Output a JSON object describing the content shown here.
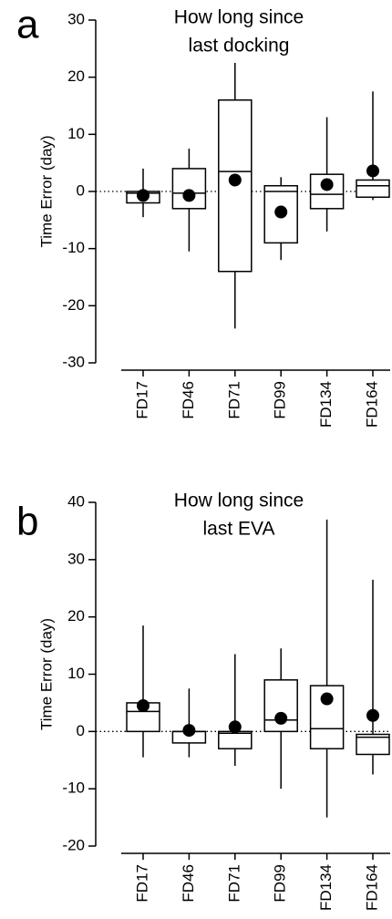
{
  "chart_data": [
    {
      "type": "box",
      "panel_label": "a",
      "title": [
        "How long since",
        "last docking"
      ],
      "y_label": "Time Error (day)",
      "categories": [
        "FD17",
        "FD46",
        "FD71",
        "FD99",
        "FD134",
        "FD164"
      ],
      "whisker_low": [
        -4.5,
        -10.5,
        -24,
        -12,
        -7,
        -1.5
      ],
      "q1": [
        -2,
        -3,
        -14,
        -9,
        -3,
        -1
      ],
      "median": [
        -0.3,
        -0.3,
        3.5,
        0,
        -0.5,
        1
      ],
      "q3": [
        0,
        4,
        16,
        1,
        3,
        2
      ],
      "whisker_high": [
        4,
        7.5,
        22.5,
        2.5,
        13,
        17.5
      ],
      "mean": [
        -0.7,
        -0.7,
        2,
        -3.6,
        1.2,
        3.6
      ],
      "ylim": [
        -30,
        30
      ],
      "yticks": [
        -30,
        -20,
        -10,
        0,
        10,
        20,
        30
      ],
      "reference_line": 0
    },
    {
      "type": "box",
      "panel_label": "b",
      "title": [
        "How long since",
        "last EVA"
      ],
      "y_label": "Time Error (day)",
      "categories": [
        "FD17",
        "FD46",
        "FD71",
        "FD99",
        "FD134",
        "FD164"
      ],
      "whisker_low": [
        -4.5,
        -4.5,
        -6,
        -10,
        -15,
        -7.5
      ],
      "q1": [
        0,
        -2,
        -3,
        0,
        -3,
        -4
      ],
      "median": [
        3.5,
        0,
        -0.3,
        2,
        0.5,
        -1
      ],
      "q3": [
        5,
        0,
        0,
        9,
        8,
        -0.5
      ],
      "whisker_high": [
        18.5,
        7.5,
        13.5,
        14.5,
        37,
        26.5
      ],
      "mean": [
        4.5,
        0.2,
        0.8,
        2.3,
        5.7,
        2.8
      ],
      "ylim": [
        -20,
        40
      ],
      "yticks": [
        -20,
        -10,
        0,
        10,
        20,
        30,
        40
      ],
      "reference_line": 0
    }
  ]
}
